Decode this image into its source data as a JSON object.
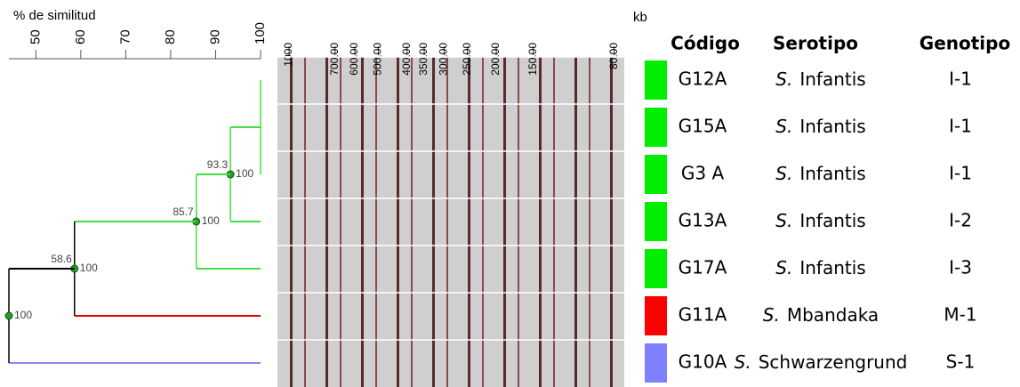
{
  "chart_data": {
    "type": "dendrogram",
    "title": "% de similitud",
    "xlim": [
      44,
      100
    ],
    "xticks": [
      50,
      60,
      70,
      80,
      90,
      100
    ],
    "tree": {
      "similarity": 44,
      "bootstrap": 100,
      "color": "#000000",
      "children": [
        {
          "similarity": 58.6,
          "bootstrap": 100,
          "color": "#000000",
          "children": [
            {
              "similarity": 85.7,
              "bootstrap": 100,
              "color": "#44dd44",
              "children": [
                {
                  "similarity": 93.3,
                  "bootstrap": 100,
                  "color": "#44dd44",
                  "children": [
                    {
                      "similarity": 100,
                      "color": "#44dd44",
                      "children": [
                        {
                          "row": 0,
                          "color": "#44dd44"
                        },
                        {
                          "row": 1,
                          "color": "#44dd44"
                        },
                        {
                          "row": 2,
                          "color": "#44dd44"
                        }
                      ]
                    },
                    {
                      "row": 3,
                      "color": "#44dd44"
                    }
                  ]
                },
                {
                  "row": 4,
                  "color": "#44dd44"
                }
              ]
            },
            {
              "row": 5,
              "color": "#e00000"
            }
          ]
        },
        {
          "row": 6,
          "color": "#8a8aee"
        }
      ]
    },
    "gel": {
      "unit": "kb",
      "scale": "log",
      "xlim": [
        1050,
        75
      ],
      "xticks": [
        1000,
        {
          "value": 700,
          "label": "700.00"
        },
        {
          "value": 600,
          "label": "600.00"
        },
        {
          "value": 500,
          "label": "500.00"
        },
        {
          "value": 400,
          "label": "400.00"
        },
        {
          "value": 350,
          "label": "350.00"
        },
        {
          "value": 300,
          "label": "300.00"
        },
        {
          "value": 250,
          "label": "250.00"
        },
        {
          "value": 200,
          "label": "200.00"
        },
        {
          "value": 150,
          "label": "150.00"
        },
        {
          "value": 80,
          "label": "80.00"
        }
      ]
    },
    "table": {
      "headers": [
        "Código",
        "Serotipo",
        "Genotipo"
      ],
      "rows": [
        {
          "color": "#00ee00",
          "code": "G12A",
          "genus": "S.",
          "serovar": "Infantis",
          "genotype": "I-1"
        },
        {
          "color": "#00ee00",
          "code": "G15A",
          "genus": "S.",
          "serovar": "Infantis",
          "genotype": "I-1"
        },
        {
          "color": "#00ee00",
          "code": "G3 A",
          "genus": "S.",
          "serovar": "Infantis",
          "genotype": "I-1"
        },
        {
          "color": "#00ee00",
          "code": "G13A",
          "genus": "S.",
          "serovar": "Infantis",
          "genotype": "I-2"
        },
        {
          "color": "#00ee00",
          "code": "G17A",
          "genus": "S.",
          "serovar": "Infantis",
          "genotype": "I-3"
        },
        {
          "color": "#ff0000",
          "code": "G11A",
          "genus": "S.",
          "serovar": "Mbandaka",
          "genotype": "M-1"
        },
        {
          "color": "#8080ff",
          "code": "G10A",
          "genus": "S.",
          "serovar": "Schwarzengrund",
          "genotype": "S-1"
        }
      ]
    }
  }
}
